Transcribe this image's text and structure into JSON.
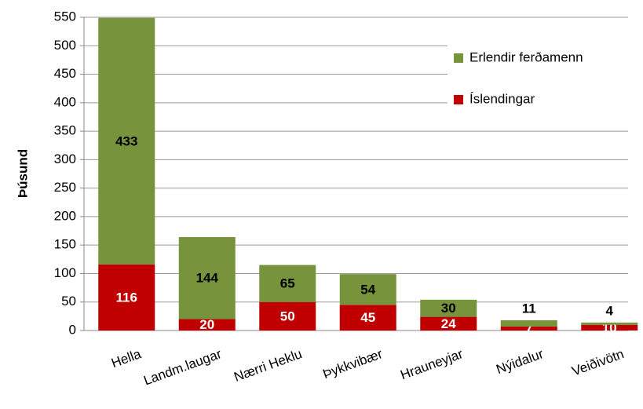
{
  "chart_data": {
    "type": "stacked_bar",
    "y_label": "Þúsund",
    "categories": [
      "Hella",
      "Landm.laugar",
      "Nærri Heklu",
      "Þykkvibær",
      "Hrauneyjar",
      "Nýidalur",
      "Veiðivötn"
    ],
    "series": [
      {
        "name": "Íslendingar",
        "color": "#c00000",
        "values": [
          116,
          20,
          50,
          45,
          24,
          7,
          10
        ]
      },
      {
        "name": "Erlendir ferðamenn",
        "color": "#77933c",
        "values": [
          433,
          144,
          65,
          54,
          30,
          11,
          4
        ]
      }
    ],
    "ylim": [
      0,
      550
    ],
    "yticks": [
      0,
      50,
      100,
      150,
      200,
      250,
      300,
      350,
      400,
      450,
      500,
      550
    ],
    "grid": true,
    "legend": "top-right"
  }
}
